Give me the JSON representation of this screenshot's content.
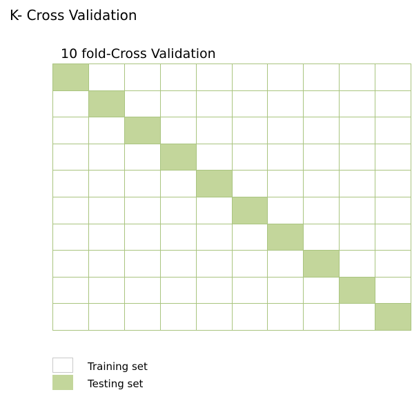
{
  "title": "K- Cross Validation",
  "diagram": {
    "title": "10 fold-Cross Validation",
    "folds": 10,
    "test_positions": [
      0,
      1,
      2,
      3,
      4,
      5,
      6,
      7,
      8,
      9
    ]
  },
  "legend": {
    "training_label": "Training set",
    "testing_label": "Testing set"
  },
  "colors": {
    "testing_fill": "#c3d69b",
    "training_fill": "#ffffff",
    "grid_line": "#a9c47f"
  }
}
